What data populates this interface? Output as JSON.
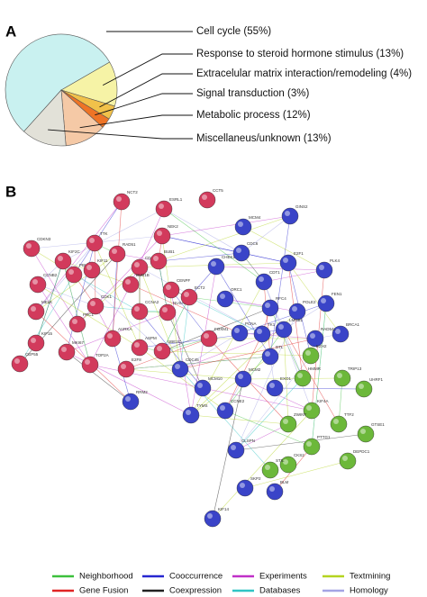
{
  "chart_data": {
    "type": "pie",
    "panel_label": "A",
    "categories": [
      "Cell cycle",
      "Response to steroid hormone stimulus",
      "Extracelular matrix interaction/remodeling",
      "Signal transduction",
      "Metabolic process",
      "Miscellaneus/unknown"
    ],
    "values": [
      55,
      13,
      4,
      3,
      12,
      13
    ],
    "value_labels": [
      "(55%)",
      "(13%)",
      "(4%)",
      "(3%)",
      "(12%)",
      "(13%)"
    ],
    "colors": [
      "#c9f1f0",
      "#f6f3a6",
      "#f1c14a",
      "#ee7426",
      "#f5c9a6",
      "#e2e1d8"
    ]
  },
  "network": {
    "panel_label": "B",
    "nodes": [
      {
        "label": "NCT2",
        "color": "#d23a5c"
      },
      {
        "label": "ESRL1",
        "color": "#d23a5c"
      },
      {
        "label": "CCT5",
        "color": "#d23a5c"
      },
      {
        "label": "NEK2",
        "color": "#d23a5c"
      },
      {
        "label": "CDKN3",
        "color": "#d23a5c"
      },
      {
        "label": "KIF2C",
        "color": "#d23a5c"
      },
      {
        "label": "TTK",
        "color": "#d23a5c"
      },
      {
        "label": "CCNB2",
        "color": "#d23a5c"
      },
      {
        "label": "PBK",
        "color": "#d23a5c"
      },
      {
        "label": "RAD51",
        "color": "#d23a5c"
      },
      {
        "label": "CDC20",
        "color": "#d23a5c"
      },
      {
        "label": "BUB1",
        "color": "#d23a5c"
      },
      {
        "label": "KIF11",
        "color": "#d23a5c"
      },
      {
        "label": "BUB1B",
        "color": "#d23a5c"
      },
      {
        "label": "CENPF",
        "color": "#d23a5c"
      },
      {
        "label": "MELK",
        "color": "#d23a5c"
      },
      {
        "label": "CDK1",
        "color": "#d23a5c"
      },
      {
        "label": "CCNA2",
        "color": "#d23a5c"
      },
      {
        "label": "NUSAP1",
        "color": "#d23a5c"
      },
      {
        "label": "KIF15",
        "color": "#d23a5c"
      },
      {
        "label": "PRC1",
        "color": "#d23a5c"
      },
      {
        "label": "AURKA",
        "color": "#d23a5c"
      },
      {
        "label": "ASPM",
        "color": "#d23a5c"
      },
      {
        "label": "MKI67",
        "color": "#d23a5c"
      },
      {
        "label": "TOP2A",
        "color": "#d23a5c"
      },
      {
        "label": "FOXM1",
        "color": "#d23a5c"
      },
      {
        "label": "E2F8",
        "color": "#d23a5c"
      },
      {
        "label": "ECT2",
        "color": "#d23a5c"
      },
      {
        "label": "CEP55",
        "color": "#d23a5c"
      },
      {
        "label": "UBE2C",
        "color": "#d23a5c"
      },
      {
        "label": "MCM4",
        "color": "#3a44c8"
      },
      {
        "label": "GINS2",
        "color": "#3a44c8"
      },
      {
        "label": "CDC6",
        "color": "#3a44c8"
      },
      {
        "label": "CHEK1",
        "color": "#3a44c8"
      },
      {
        "label": "E2F1",
        "color": "#3a44c8"
      },
      {
        "label": "PLK4",
        "color": "#3a44c8"
      },
      {
        "label": "CDT1",
        "color": "#3a44c8"
      },
      {
        "label": "ORC1",
        "color": "#3a44c8"
      },
      {
        "label": "RFC4",
        "color": "#3a44c8"
      },
      {
        "label": "POLE2",
        "color": "#3a44c8"
      },
      {
        "label": "FEN1",
        "color": "#3a44c8"
      },
      {
        "label": "BRCA1",
        "color": "#3a44c8"
      },
      {
        "label": "RAD54L",
        "color": "#3a44c8"
      },
      {
        "label": "LMNB1",
        "color": "#3a44c8"
      },
      {
        "label": "PCNA",
        "color": "#3a44c8"
      },
      {
        "label": "TK1",
        "color": "#3a44c8"
      },
      {
        "label": "DTL",
        "color": "#3a44c8"
      },
      {
        "label": "MCM2",
        "color": "#3a44c8"
      },
      {
        "label": "MCM10",
        "color": "#3a44c8"
      },
      {
        "label": "CDC45",
        "color": "#3a44c8"
      },
      {
        "label": "RRM2",
        "color": "#3a44c8"
      },
      {
        "label": "TYMS",
        "color": "#3a44c8"
      },
      {
        "label": "CCNE2",
        "color": "#3a44c8"
      },
      {
        "label": "EXO1",
        "color": "#3a44c8"
      },
      {
        "label": "CLSPN",
        "color": "#3a44c8"
      },
      {
        "label": "SKP2",
        "color": "#3a44c8"
      },
      {
        "label": "BLM",
        "color": "#3a44c8"
      },
      {
        "label": "KIF14",
        "color": "#3a44c8"
      },
      {
        "label": "EZH2",
        "color": "#6cb83a"
      },
      {
        "label": "HMMR",
        "color": "#6cb83a"
      },
      {
        "label": "TRIP13",
        "color": "#6cb83a"
      },
      {
        "label": "UHRF1",
        "color": "#6cb83a"
      },
      {
        "label": "KIF4A",
        "color": "#6cb83a"
      },
      {
        "label": "ZWINT",
        "color": "#6cb83a"
      },
      {
        "label": "TTF2",
        "color": "#6cb83a"
      },
      {
        "label": "GTSE1",
        "color": "#6cb83a"
      },
      {
        "label": "PTTG1",
        "color": "#6cb83a"
      },
      {
        "label": "CKS2",
        "color": "#6cb83a"
      },
      {
        "label": "STIL",
        "color": "#6cb83a"
      },
      {
        "label": "DEPDC1",
        "color": "#6cb83a"
      }
    ],
    "legend": [
      {
        "name": "Neighborhood",
        "color": "#3cc03c"
      },
      {
        "name": "Cooccurrence",
        "color": "#2626d0"
      },
      {
        "name": "Experiments",
        "color": "#c030c8"
      },
      {
        "name": "Textmining",
        "color": "#b4d420"
      },
      {
        "name": "Gene Fusion",
        "color": "#e02424"
      },
      {
        "name": "Coexpression",
        "color": "#222222"
      },
      {
        "name": "Databases",
        "color": "#30c4c4"
      },
      {
        "name": "Homology",
        "color": "#a4a4e4"
      }
    ]
  }
}
